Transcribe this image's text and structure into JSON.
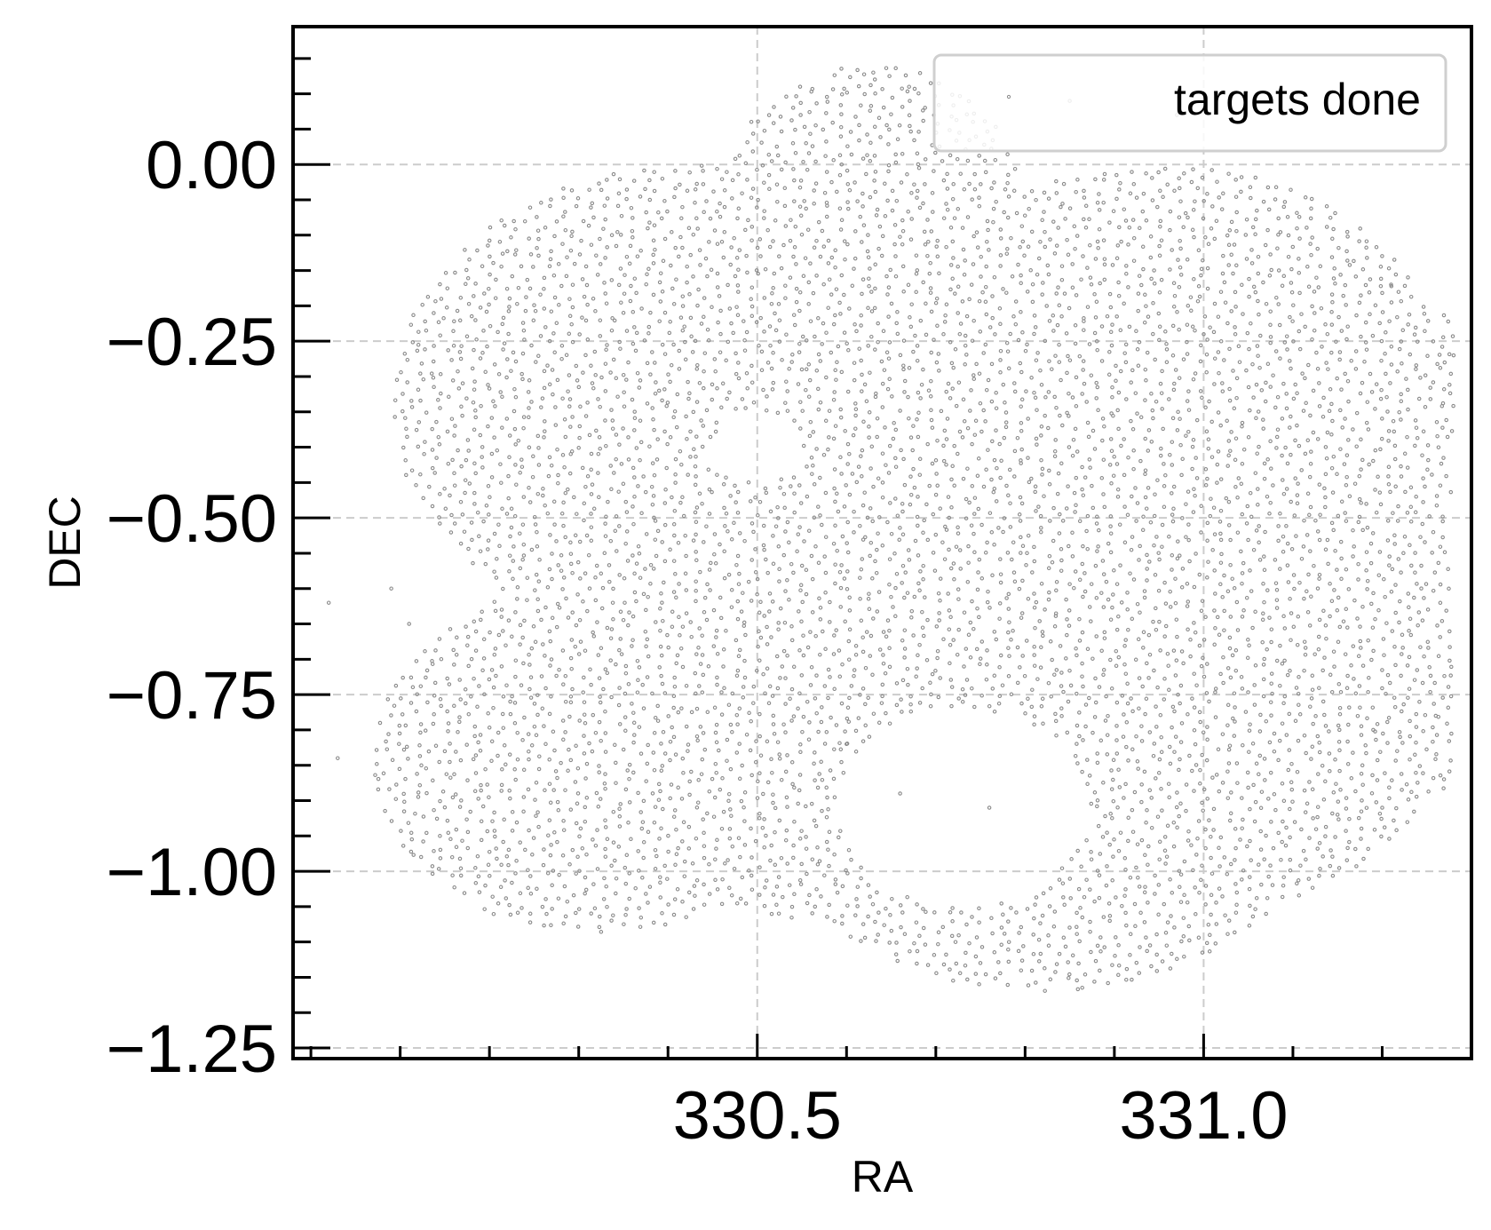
{
  "chart_data": {
    "type": "scatter",
    "title": "",
    "xlabel": "RA",
    "ylabel": "DEC",
    "xlim": [
      329.98,
      331.3
    ],
    "ylim": [
      -1.265,
      0.195
    ],
    "xticks": [
      {
        "value": 330.5,
        "label": "330.5"
      },
      {
        "value": 331.0,
        "label": "331.0"
      }
    ],
    "x_minor_step": 0.1,
    "yticks": [
      {
        "value": 0.0,
        "label": "0.00"
      },
      {
        "value": -0.25,
        "label": "−0.25"
      },
      {
        "value": -0.5,
        "label": "−0.50"
      },
      {
        "value": -0.75,
        "label": "−0.75"
      },
      {
        "value": -1.0,
        "label": "−1.00"
      },
      {
        "value": -1.25,
        "label": "−1.25"
      }
    ],
    "y_minor_step": 0.05,
    "grid": true,
    "legend": {
      "position": "top-right",
      "entries": [
        "targets done"
      ]
    },
    "point_color": "#8a8a8a",
    "grid_color": "#cccccc",
    "series": [
      {
        "name": "targets done",
        "footprint": {
          "spacing": 0.0155,
          "tiles": [
            {
              "ra": 330.43,
              "dec": -0.34,
              "radius": 0.34
            },
            {
              "ra": 330.32,
              "dec": -0.84,
              "radius": 0.25
            },
            {
              "ra": 330.58,
              "dec": -0.7,
              "radius": 0.37
            },
            {
              "ra": 330.93,
              "dec": -0.69,
              "radius": 0.39
            },
            {
              "ra": 330.95,
              "dec": -0.33,
              "radius": 0.33
            },
            {
              "ra": 331.1,
              "dec": -0.45,
              "radius": 0.3
            },
            {
              "ra": 330.63,
              "dec": -0.02,
              "radius": 0.16
            },
            {
              "ra": 330.82,
              "dec": -0.83,
              "radius": 0.34
            }
          ],
          "x_bounds": [
            330.04,
            331.28
          ],
          "y_bounds": [
            -1.21,
            0.14
          ],
          "holes": [
            {
              "ra": 330.73,
              "dec": -0.91,
              "radius": 0.14
            },
            {
              "ra": 330.5,
              "dec": -0.4,
              "radius": 0.05
            }
          ]
        },
        "isolated_points": [
          {
            "ra": 330.63,
            "dec": 0.13
          },
          {
            "ra": 330.67,
            "dec": 0.11
          },
          {
            "ra": 330.85,
            "dec": 0.09
          },
          {
            "ra": 330.97,
            "dec": 0.07
          },
          {
            "ra": 330.09,
            "dec": -0.6
          },
          {
            "ra": 330.11,
            "dec": -0.65
          },
          {
            "ra": 330.02,
            "dec": -0.62
          },
          {
            "ra": 330.03,
            "dec": -0.84
          },
          {
            "ra": 330.66,
            "dec": -0.89
          },
          {
            "ra": 330.76,
            "dec": -0.91
          },
          {
            "ra": 331.13,
            "dec": -0.96
          },
          {
            "ra": 331.15,
            "dec": -0.92
          },
          {
            "ra": 331.2,
            "dec": -0.91
          },
          {
            "ra": 331.22,
            "dec": -0.81
          },
          {
            "ra": 331.26,
            "dec": -0.78
          },
          {
            "ra": 331.19,
            "dec": -0.8
          },
          {
            "ra": 331.28,
            "dec": -0.27
          },
          {
            "ra": 331.21,
            "dec": -0.17
          },
          {
            "ra": 330.6,
            "dec": -0.82
          },
          {
            "ra": 330.55,
            "dec": -0.29
          },
          {
            "ra": 330.39,
            "dec": -0.32
          }
        ]
      }
    ]
  }
}
